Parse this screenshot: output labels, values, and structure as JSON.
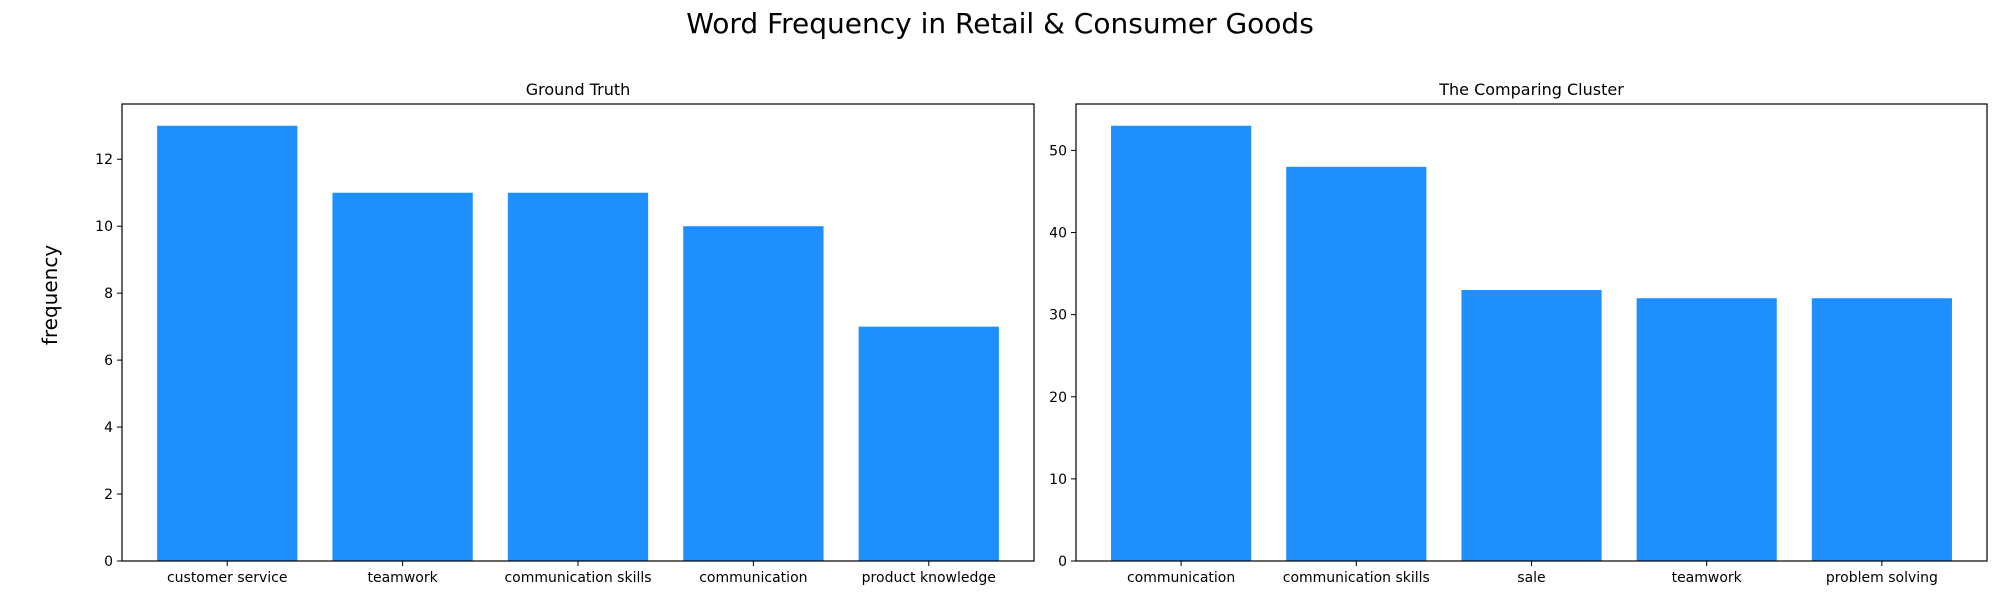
{
  "figure": {
    "title": "Word Frequency in Retail & Consumer Goods",
    "ylabel": "frequency"
  },
  "colors": {
    "bar": "#1f8ffe",
    "axis": "#000000",
    "background": "#ffffff"
  },
  "chart_data": [
    {
      "type": "bar",
      "title": "Ground Truth",
      "xlabel": "",
      "ylabel": "frequency",
      "categories": [
        "customer service",
        "teamwork",
        "communication skills",
        "communication",
        "product knowledge"
      ],
      "values": [
        13,
        11,
        11,
        10,
        7
      ],
      "ylim": [
        0,
        13.65
      ],
      "yticks": [
        0,
        2,
        4,
        6,
        8,
        10,
        12
      ],
      "grid": false,
      "legend": "none"
    },
    {
      "type": "bar",
      "title": "The Comparing Cluster",
      "xlabel": "",
      "ylabel": "",
      "categories": [
        "communication",
        "communication skills",
        "sale",
        "teamwork",
        "problem solving"
      ],
      "values": [
        53,
        48,
        33,
        32,
        32
      ],
      "ylim": [
        0,
        55.65
      ],
      "yticks": [
        0,
        10,
        20,
        30,
        40,
        50
      ],
      "grid": false,
      "legend": "none"
    }
  ]
}
